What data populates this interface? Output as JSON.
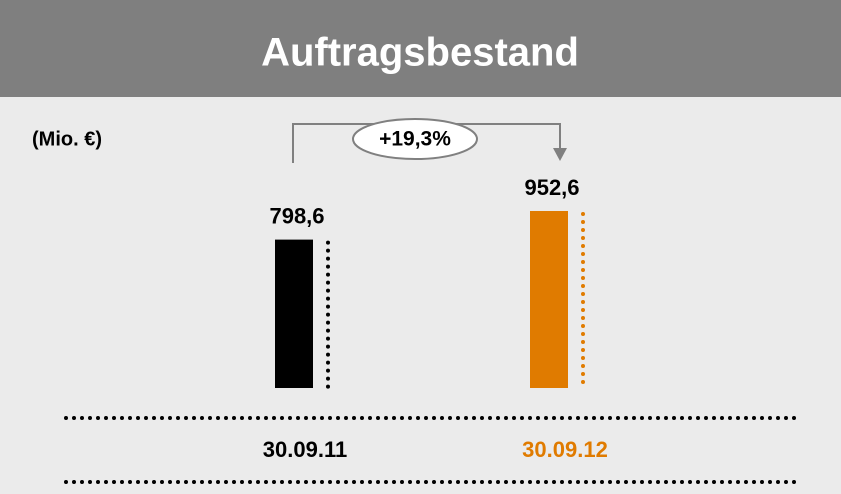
{
  "chart_data": {
    "type": "bar",
    "title": "Auftragsbestand",
    "unit_label": "(Mio. €)",
    "categories": [
      "30.09.11",
      "30.09.12"
    ],
    "values": [
      798.6,
      952.6
    ],
    "value_labels": [
      "798,6",
      "952,6"
    ],
    "colors": [
      "#000000",
      "#e07b00"
    ],
    "ylim": [
      0,
      1100
    ],
    "annotation": "+19,3%"
  }
}
